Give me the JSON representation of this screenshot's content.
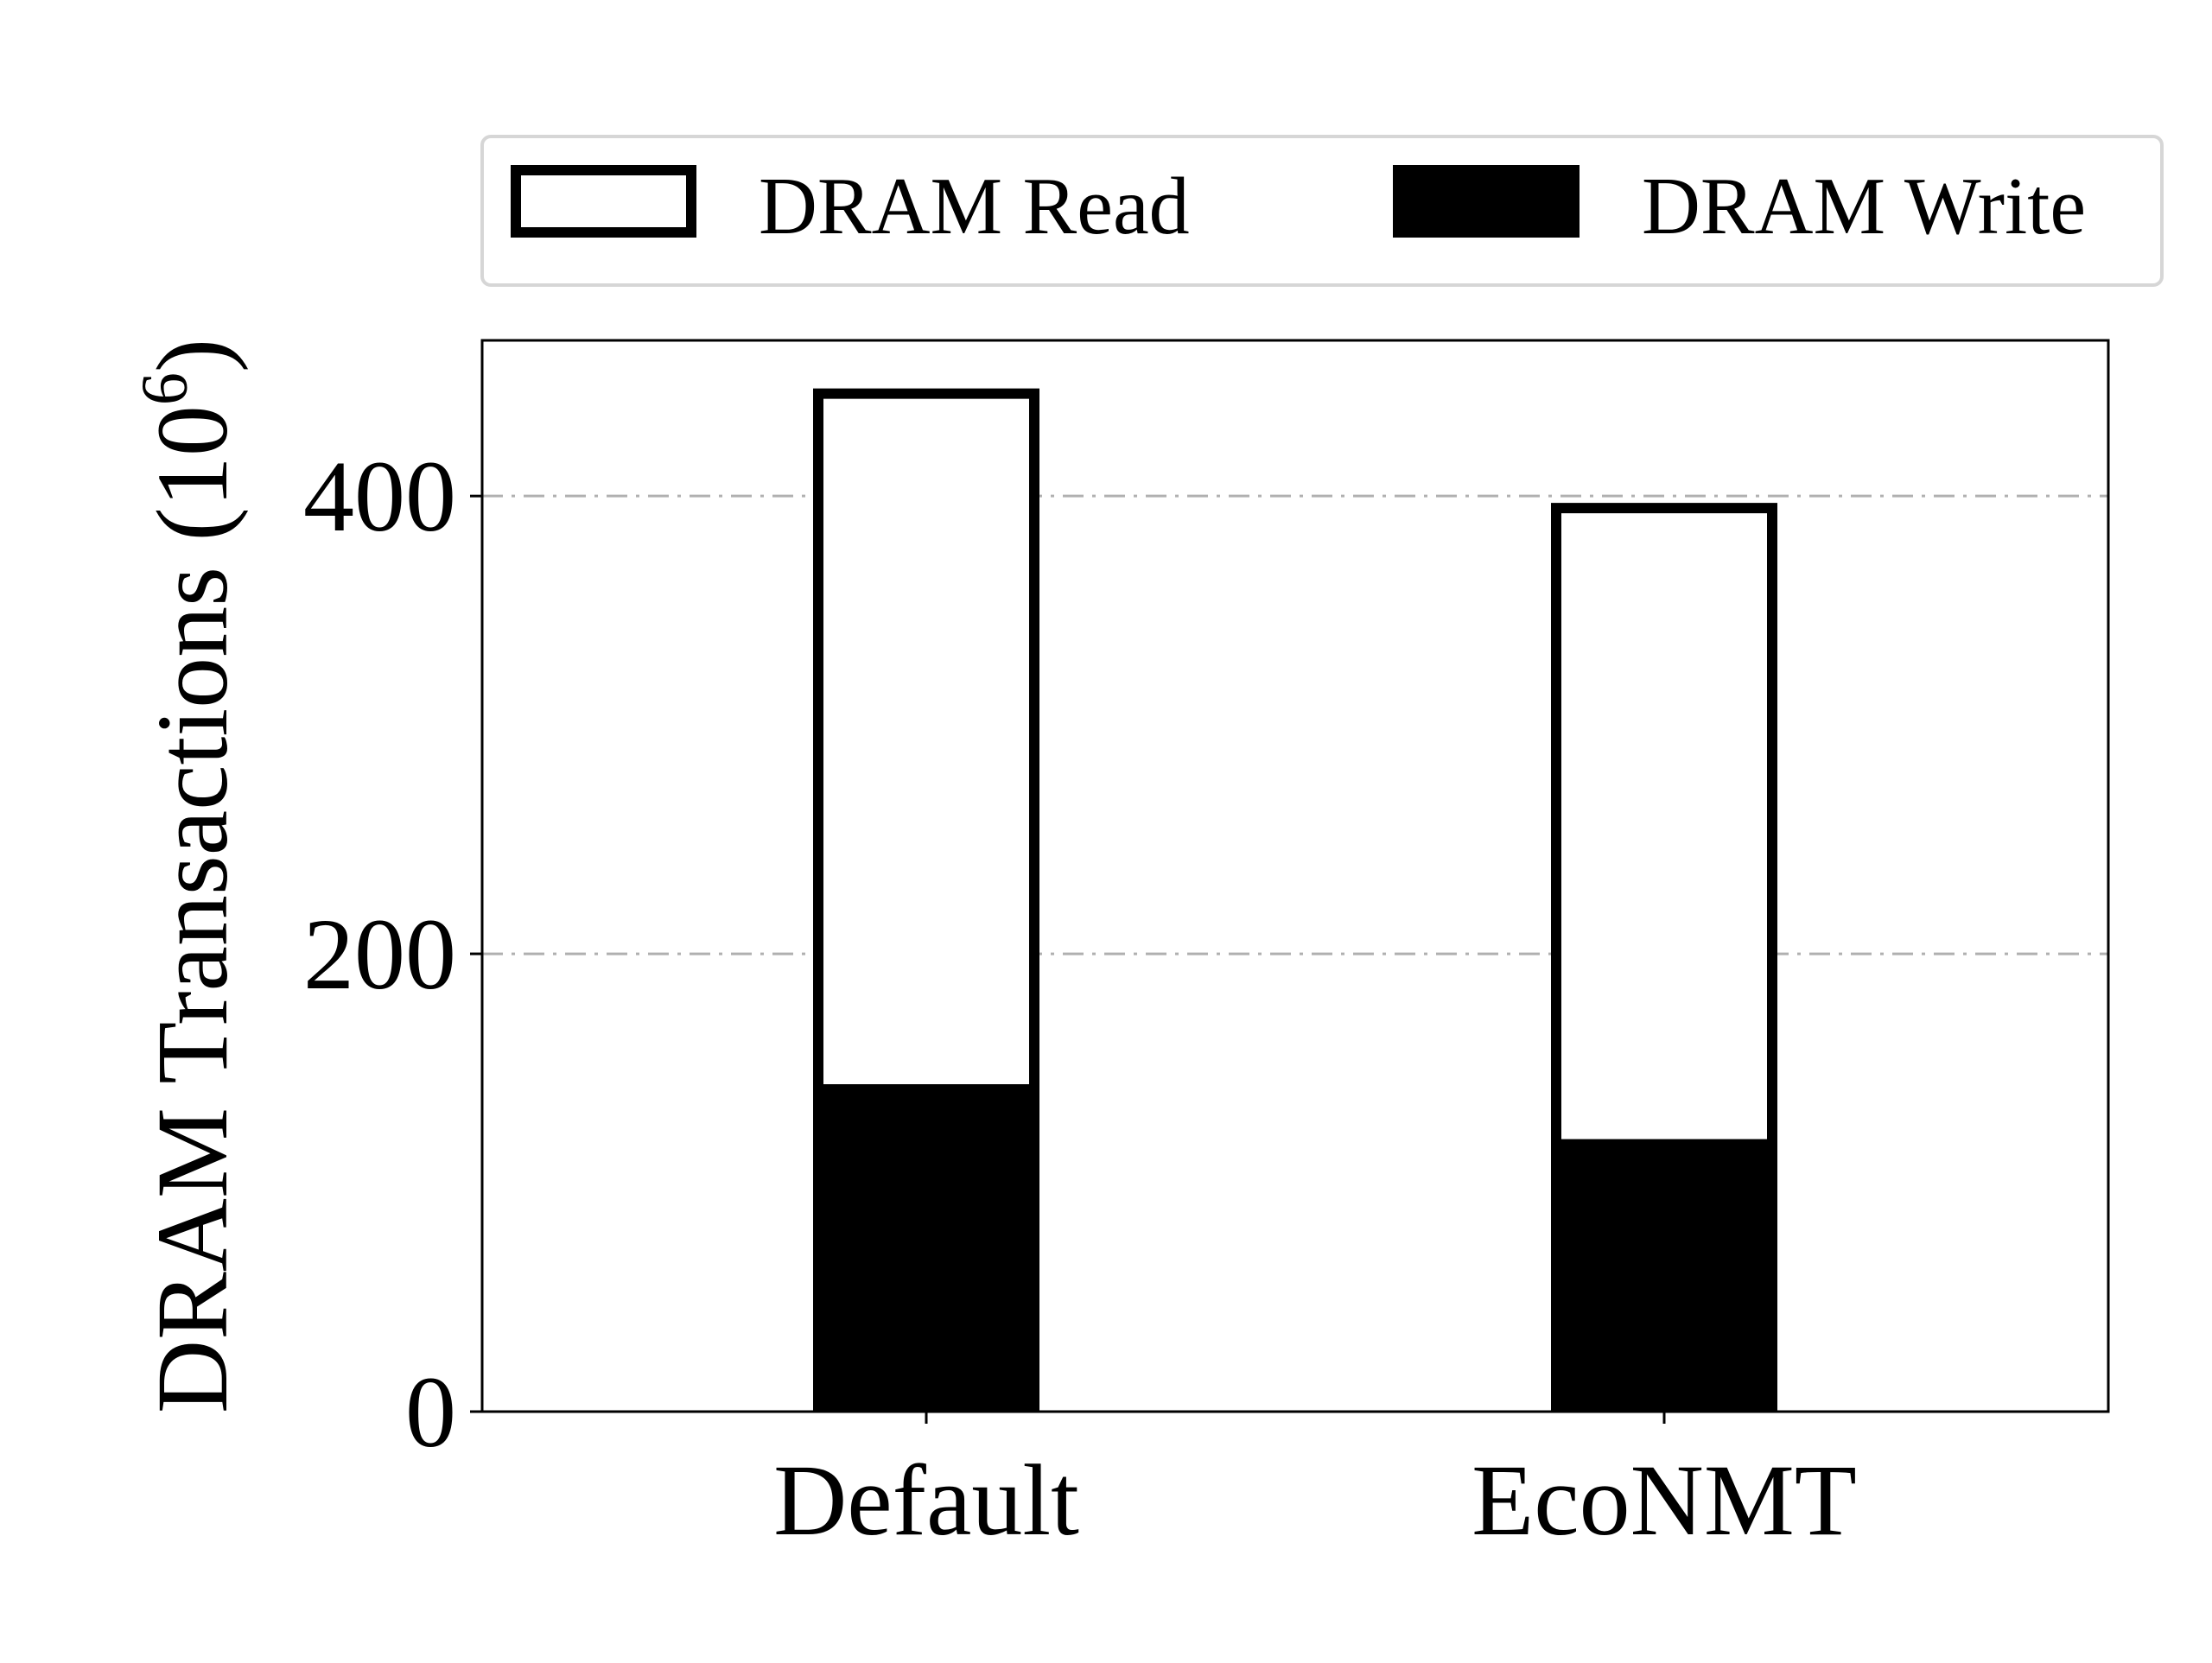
{
  "chart_data": {
    "type": "bar",
    "stacked": true,
    "categories": [
      "Default",
      "EcoNMT"
    ],
    "series": [
      {
        "name": "DRAM Write",
        "values": [
          143,
          119
        ],
        "style": "filled"
      },
      {
        "name": "DRAM Read",
        "values": [
          304,
          278
        ],
        "style": "outlined"
      }
    ],
    "ylabel": "DRAM Transactions (10",
    "ylabel_superscript": "6",
    "ylabel_close": ")",
    "ylim": [
      0,
      468
    ],
    "yticks": [
      0,
      200,
      400
    ],
    "ytick_labels": [
      "0",
      "200",
      "400"
    ],
    "grid": "horizontal dash-dot",
    "legend_placement": "top",
    "colors": {
      "write": "#000000",
      "read_fill": "#ffffff",
      "outline": "#000000",
      "grid": "#b0b0b0"
    }
  }
}
